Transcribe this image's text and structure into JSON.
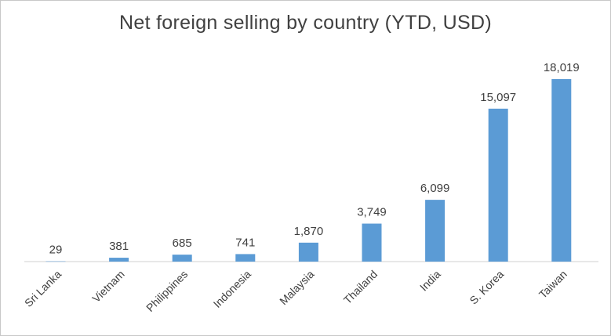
{
  "chart_data": {
    "type": "bar",
    "title": "Net foreign selling by country (YTD, USD)",
    "xlabel": "",
    "ylabel": "",
    "categories": [
      "Sri Lanka",
      "Vietnam",
      "Philippines",
      "Indonesia",
      "Malaysia",
      "Thailand",
      "India",
      "S. Korea",
      "Taiwan"
    ],
    "values": [
      29,
      381,
      685,
      741,
      1870,
      3749,
      6099,
      15097,
      18019
    ],
    "value_labels": [
      "29",
      "381",
      "685",
      "741",
      "1,870",
      "3,749",
      "6,099",
      "15,097",
      "18,019"
    ],
    "ylim": [
      0,
      18019
    ],
    "grid": false,
    "legend": "none",
    "bar_color": "#5b9bd5"
  }
}
